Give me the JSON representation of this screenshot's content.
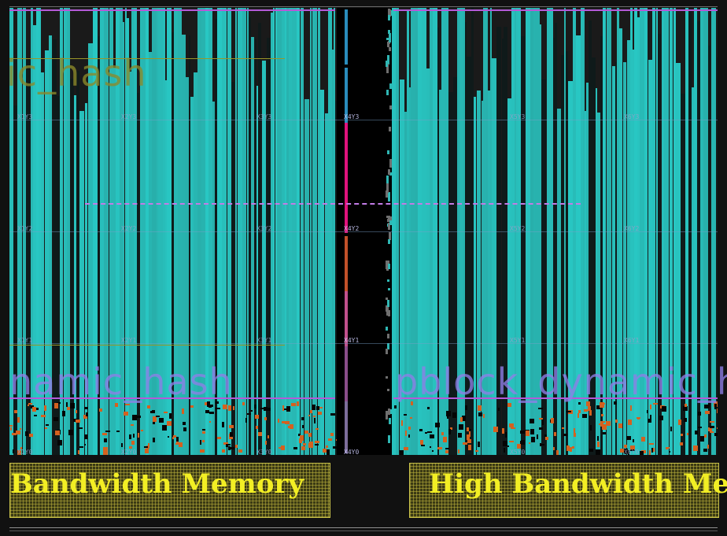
{
  "pblocks": {
    "left_top_label": "ic_hash",
    "left_bottom_label": "namic_hash",
    "right_bottom_label": "pblock_dynamic_ha"
  },
  "clock_regions": {
    "row3": [
      "X1Y3",
      "X2Y3",
      "X3Y3",
      "X4Y3",
      "X5Y3",
      "X6Y3"
    ],
    "row2": [
      "X1Y2",
      "X2Y2",
      "X3Y2",
      "X4Y2",
      "X5Y2",
      "X6Y2"
    ],
    "row1": [
      "X1Y1",
      "X2Y1",
      "X3Y1",
      "X4Y1",
      "X5Y1",
      "X6Y1"
    ],
    "row0": [
      "X1Y0",
      "X2Y0",
      "X3Y0",
      "X4Y0",
      "X5Y0",
      "X6Y0"
    ]
  },
  "hbm": {
    "left_label": "Bandwidth Memory",
    "right_label": "High Bandwidth Me"
  },
  "colors": {
    "fabric_cell": "#2fb7b4",
    "fabric_dark": "#0f1a1a",
    "pblock_outline": "#b45ad8",
    "pblock_label": "#8f7fe8",
    "top_label": "#8c8a2a",
    "hbm_text": "#f2ee24",
    "hot_cell": "#d4611f",
    "magenta_col": "#e0127c"
  }
}
